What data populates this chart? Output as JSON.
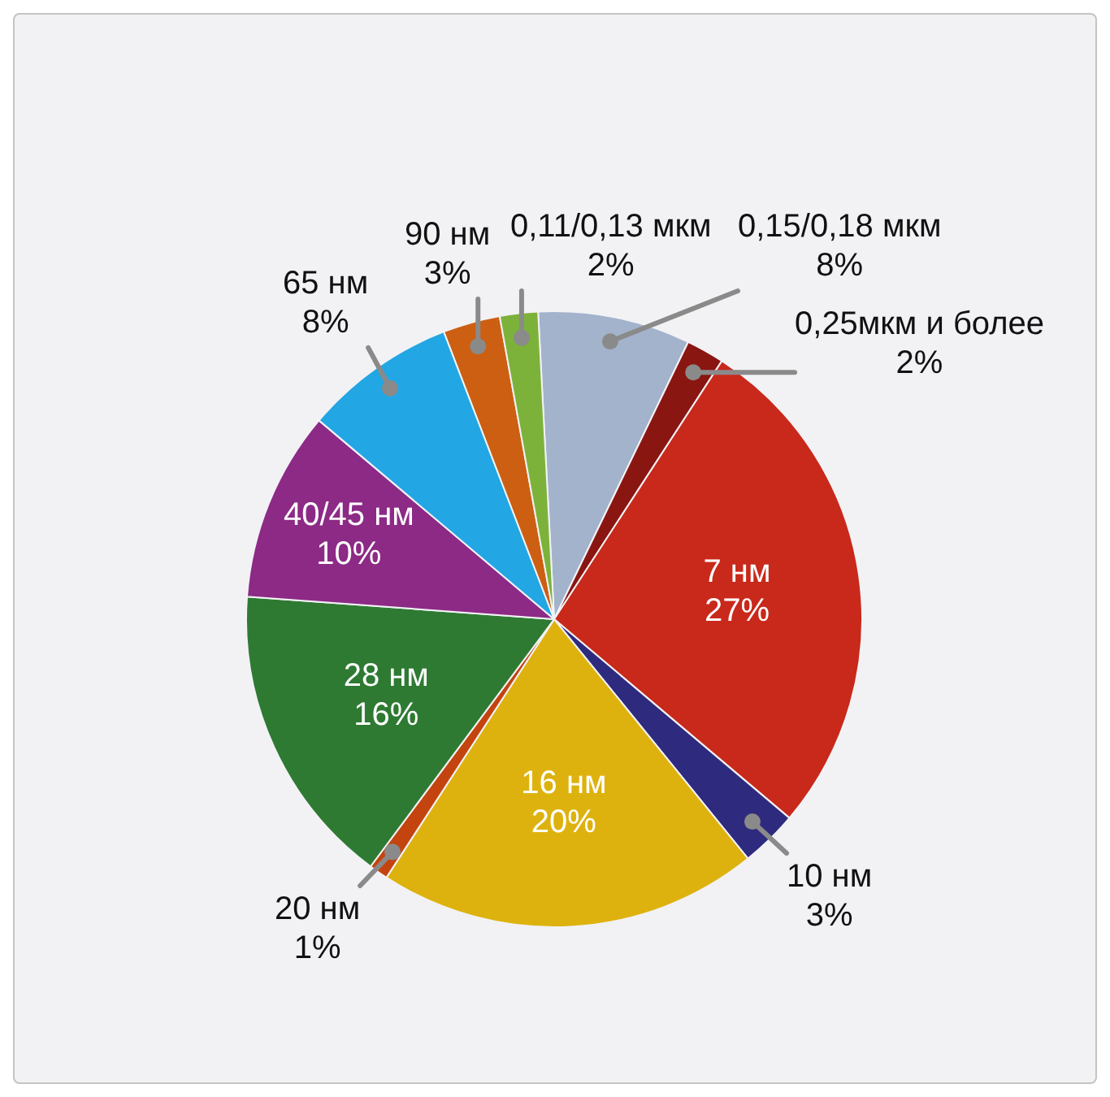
{
  "chart_data": {
    "type": "pie",
    "categories": [
      "0,15/0,18 мкм",
      "0,25мкм и более",
      "7 нм",
      "10 нм",
      "16 нм",
      "20 нм",
      "28 нм",
      "40/45 нм",
      "65 нм",
      "90 нм",
      "0,11/0,13 мкм"
    ],
    "values": [
      8,
      2,
      27,
      3,
      20,
      1,
      16,
      10,
      8,
      3,
      2
    ],
    "value_labels": [
      "8%",
      "2%",
      "27%",
      "3%",
      "20%",
      "1%",
      "16%",
      "10%",
      "8%",
      "3%",
      "2%"
    ],
    "colors": [
      "#a3b3cc",
      "#8a1612",
      "#c8291b",
      "#2e2a7e",
      "#deb20e",
      "#c4440f",
      "#2f7a33",
      "#8c2a86",
      "#22a6e4",
      "#cc5f12",
      "#7cb23a"
    ]
  }
}
